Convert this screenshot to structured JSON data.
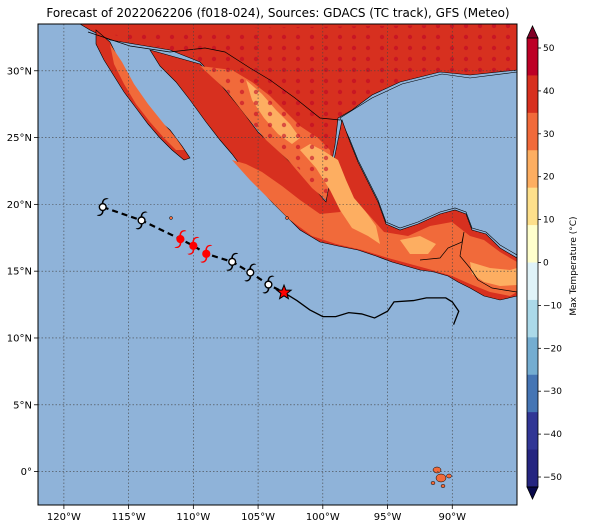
{
  "title": "Forecast of 2022062206 (f018-024), Sources: GDACS (TC track), GFS (Meteo)",
  "map": {
    "lon_range": [
      -122,
      -85
    ],
    "lat_range": [
      -2.5,
      33.5
    ],
    "lon_ticks": [
      {
        "value": -120,
        "label": "120°W"
      },
      {
        "value": -115,
        "label": "115°W"
      },
      {
        "value": -110,
        "label": "110°W"
      },
      {
        "value": -105,
        "label": "105°W"
      },
      {
        "value": -100,
        "label": "100°W"
      },
      {
        "value": -95,
        "label": "95°W"
      },
      {
        "value": -90,
        "label": "90°W"
      }
    ],
    "lat_ticks": [
      {
        "value": 30,
        "label": "30°N"
      },
      {
        "value": 25,
        "label": "25°N"
      },
      {
        "value": 20,
        "label": "20°N"
      },
      {
        "value": 15,
        "label": "15°N"
      },
      {
        "value": 10,
        "label": "10°N"
      },
      {
        "value": 5,
        "label": "5°N"
      },
      {
        "value": 0,
        "label": "0°"
      }
    ],
    "gridlines": true,
    "ocean_color": "#8fb3d9",
    "land_color": "#d7301f"
  },
  "colorbar": {
    "label": "Max Temperature (°C)",
    "ticks": [
      "50",
      "40",
      "30",
      "20",
      "10",
      "0",
      "−10",
      "−20",
      "−30",
      "−40",
      "−50"
    ],
    "colors": [
      "#bd0026",
      "#d7301f",
      "#f16a3a",
      "#fdae61",
      "#fee08b",
      "#ffffcc",
      "#e0f3f8",
      "#abd9e9",
      "#74add1",
      "#4575b4",
      "#313695",
      "#252580"
    ]
  },
  "storm": {
    "current_position": {
      "lon": -103,
      "lat": 13.4
    },
    "forecast_track": [
      {
        "lon": -117.0,
        "lat": 19.8,
        "color": "#000000"
      },
      {
        "lon": -114.0,
        "lat": 18.8,
        "color": "#000000"
      },
      {
        "lon": -111.0,
        "lat": 17.4,
        "color": "#ff0000"
      },
      {
        "lon": -110.0,
        "lat": 16.9,
        "color": "#ff0000"
      },
      {
        "lon": -109.0,
        "lat": 16.3,
        "color": "#ff0000"
      },
      {
        "lon": -107.0,
        "lat": 15.7,
        "color": "#000000"
      },
      {
        "lon": -105.6,
        "lat": 14.9,
        "color": "#000000"
      },
      {
        "lon": -104.2,
        "lat": 14.0,
        "color": "#000000"
      }
    ],
    "past_track": [
      {
        "lon": -103.0,
        "lat": 13.4
      },
      {
        "lon": -102.0,
        "lat": 12.8
      },
      {
        "lon": -101.0,
        "lat": 12.1
      },
      {
        "lon": -100.0,
        "lat": 11.6
      },
      {
        "lon": -99.0,
        "lat": 11.6
      },
      {
        "lon": -98.0,
        "lat": 11.9
      },
      {
        "lon": -97.0,
        "lat": 11.8
      },
      {
        "lon": -96.0,
        "lat": 11.5
      },
      {
        "lon": -95.0,
        "lat": 12.0
      },
      {
        "lon": -94.5,
        "lat": 12.7
      },
      {
        "lon": -93.0,
        "lat": 12.8
      },
      {
        "lon": -92.0,
        "lat": 13.0
      },
      {
        "lon": -90.5,
        "lat": 13.0
      },
      {
        "lon": -90.0,
        "lat": 12.7
      },
      {
        "lon": -89.5,
        "lat": 12.0
      },
      {
        "lon": -89.9,
        "lat": 11.0
      }
    ]
  }
}
